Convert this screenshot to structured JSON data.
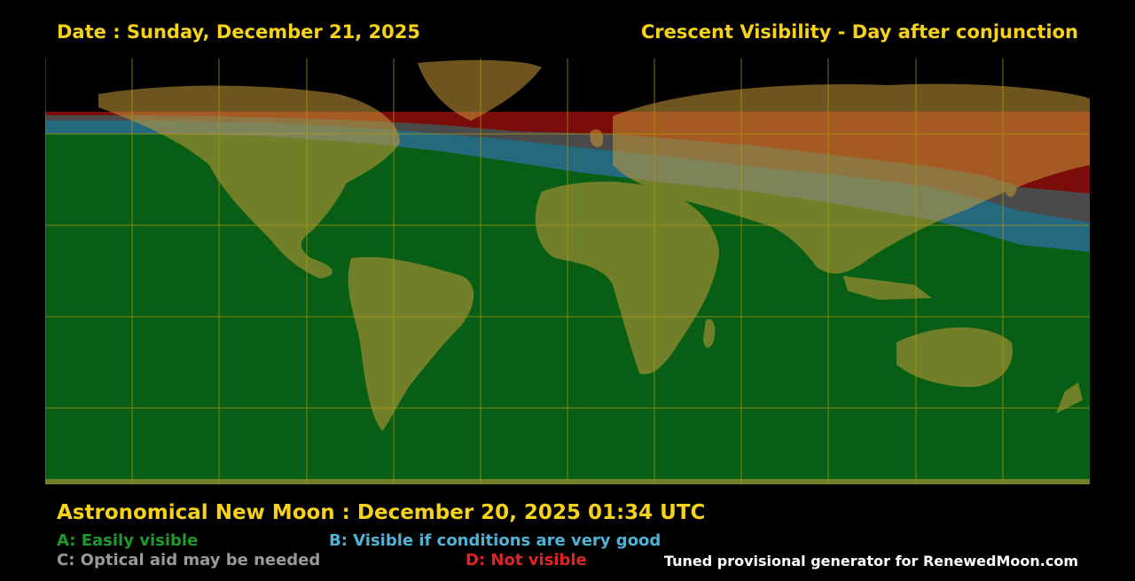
{
  "header": {
    "date_label": "Date : Sunday, December 21, 2025",
    "title": "Crescent Visibility - Day after conjunction"
  },
  "footer": {
    "new_moon": "Astronomical New Moon : December 20, 2025 01:34 UTC",
    "credit": "Tuned provisional generator for RenewedMoon.com"
  },
  "legend": [
    {
      "text": "A: Easily visible",
      "color": "#1e9a2a"
    },
    {
      "text": "B: Visible if conditions are very good",
      "color": "#4fb3d6"
    },
    {
      "text": "C: Optical aid may be needed",
      "color": "#9a9a9a"
    },
    {
      "text": "D: Not visible",
      "color": "#e02424"
    }
  ],
  "colors": {
    "zone_a": "#075e14",
    "zone_b": "#25697e",
    "zone_c": "#4a4a4a",
    "zone_d": "#7a0d0a",
    "land": "#c99a3a",
    "grid": "#b59a10",
    "title": "#f6d21a"
  }
}
